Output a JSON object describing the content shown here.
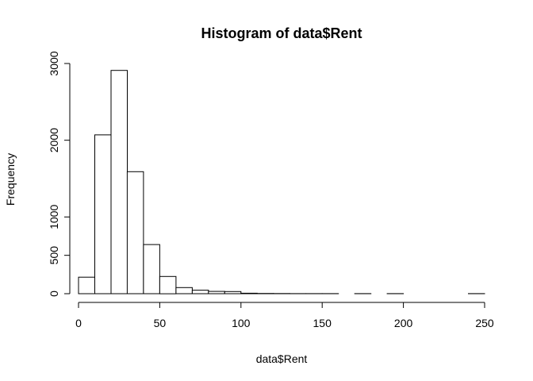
{
  "chart_data": {
    "type": "bar",
    "title": "Histogram of data$Rent",
    "xlabel": "data$Rent",
    "ylabel": "Frequency",
    "bin_width": 10,
    "bins": [
      {
        "start": 0,
        "end": 10,
        "count": 215
      },
      {
        "start": 10,
        "end": 20,
        "count": 2070
      },
      {
        "start": 20,
        "end": 30,
        "count": 2910
      },
      {
        "start": 30,
        "end": 40,
        "count": 1590
      },
      {
        "start": 40,
        "end": 50,
        "count": 640
      },
      {
        "start": 50,
        "end": 60,
        "count": 225
      },
      {
        "start": 60,
        "end": 70,
        "count": 80
      },
      {
        "start": 70,
        "end": 80,
        "count": 45
      },
      {
        "start": 80,
        "end": 90,
        "count": 30
      },
      {
        "start": 90,
        "end": 100,
        "count": 28
      },
      {
        "start": 100,
        "end": 110,
        "count": 6
      },
      {
        "start": 110,
        "end": 120,
        "count": 3
      },
      {
        "start": 120,
        "end": 130,
        "count": 2
      },
      {
        "start": 130,
        "end": 140,
        "count": 1
      },
      {
        "start": 140,
        "end": 150,
        "count": 1
      },
      {
        "start": 150,
        "end": 160,
        "count": 1
      },
      {
        "start": 160,
        "end": 170,
        "count": 0
      },
      {
        "start": 170,
        "end": 180,
        "count": 1
      },
      {
        "start": 180,
        "end": 190,
        "count": 0
      },
      {
        "start": 190,
        "end": 200,
        "count": 1
      },
      {
        "start": 200,
        "end": 210,
        "count": 0
      },
      {
        "start": 210,
        "end": 220,
        "count": 0
      },
      {
        "start": 220,
        "end": 230,
        "count": 0
      },
      {
        "start": 230,
        "end": 240,
        "count": 0
      },
      {
        "start": 240,
        "end": 250,
        "count": 1
      }
    ],
    "xlim": [
      0,
      250
    ],
    "ylim": [
      0,
      3000
    ],
    "x_ticks": [
      0,
      50,
      100,
      150,
      200,
      250
    ],
    "y_ticks": [
      0,
      500,
      1000,
      2000,
      3000
    ],
    "grid": false,
    "legend": "none",
    "bar_fill": "#ffffff",
    "bar_stroke": "#000000"
  }
}
